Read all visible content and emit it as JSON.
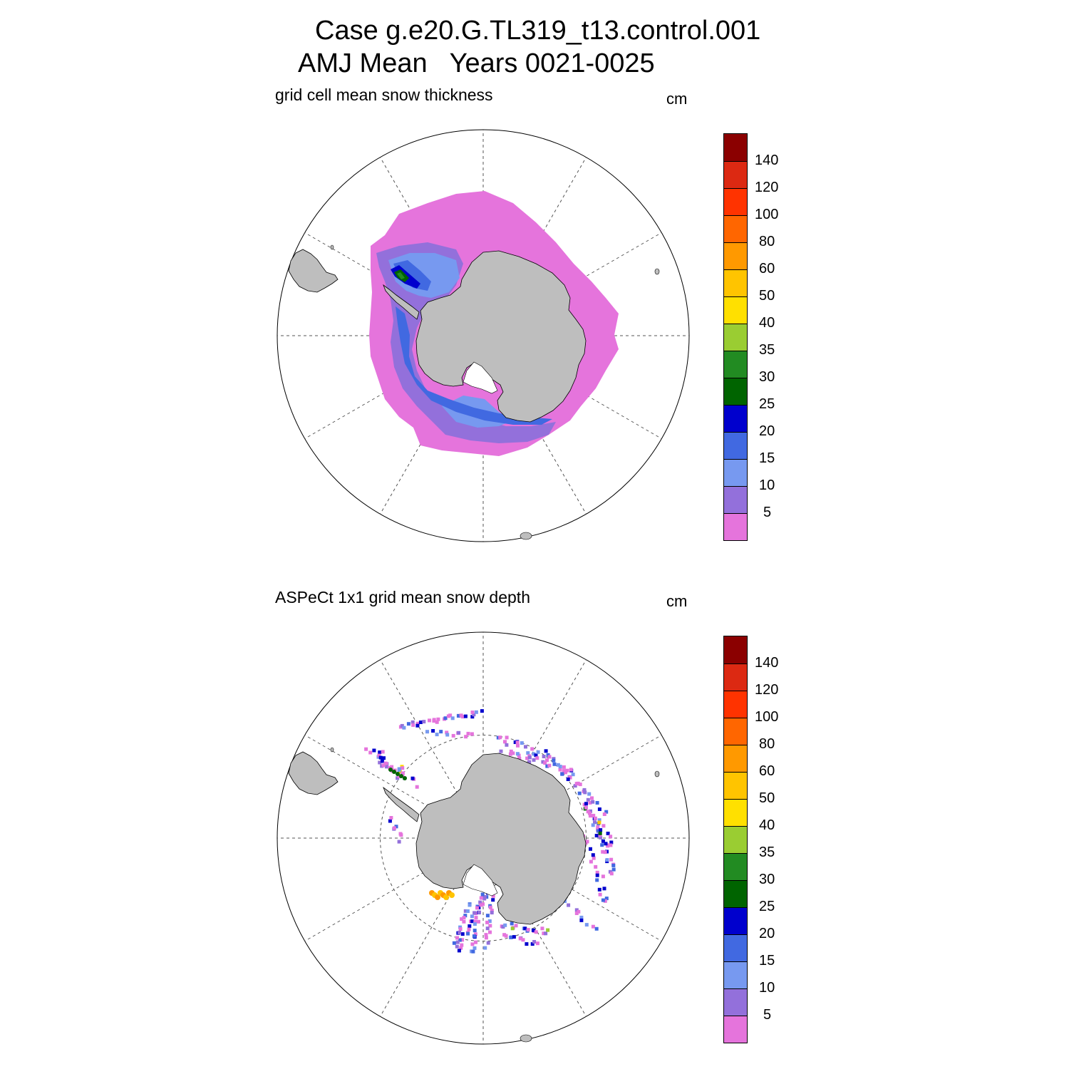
{
  "title": {
    "line1": "Case g.e20.G.TL319_t13.control.001",
    "line2": "AMJ Mean   Years 0021-0025"
  },
  "panels": [
    {
      "id": "model",
      "label": "grid cell mean snow thickness",
      "units": "cm",
      "field": "continuous-ring",
      "ring_pattern": [
        "mid-pink",
        "ice-edge-pink",
        "near-coast-purple-blue",
        "weddell-dark-blue-green"
      ]
    },
    {
      "id": "obs",
      "label": "ASPeCt 1x1 grid mean snow depth",
      "units": "cm",
      "field": "ship-track-pixels"
    }
  ],
  "colorbar": {
    "levels": [
      "140",
      "120",
      "100",
      "80",
      "60",
      "50",
      "40",
      "35",
      "30",
      "25",
      "20",
      "15",
      "10",
      "5"
    ],
    "colors_top_to_bottom": [
      "#8b0000",
      "#dc2912",
      "#ff3300",
      "#ff6600",
      "#ff9900",
      "#ffc400",
      "#ffe000",
      "#9acd32",
      "#228b22",
      "#006400",
      "#0000cd",
      "#4169e1",
      "#7799f0",
      "#9370db",
      "#e574dc"
    ]
  },
  "style": {
    "land_color": "#bebebe",
    "coast_color": "#000000",
    "grid_color": "#555555"
  }
}
